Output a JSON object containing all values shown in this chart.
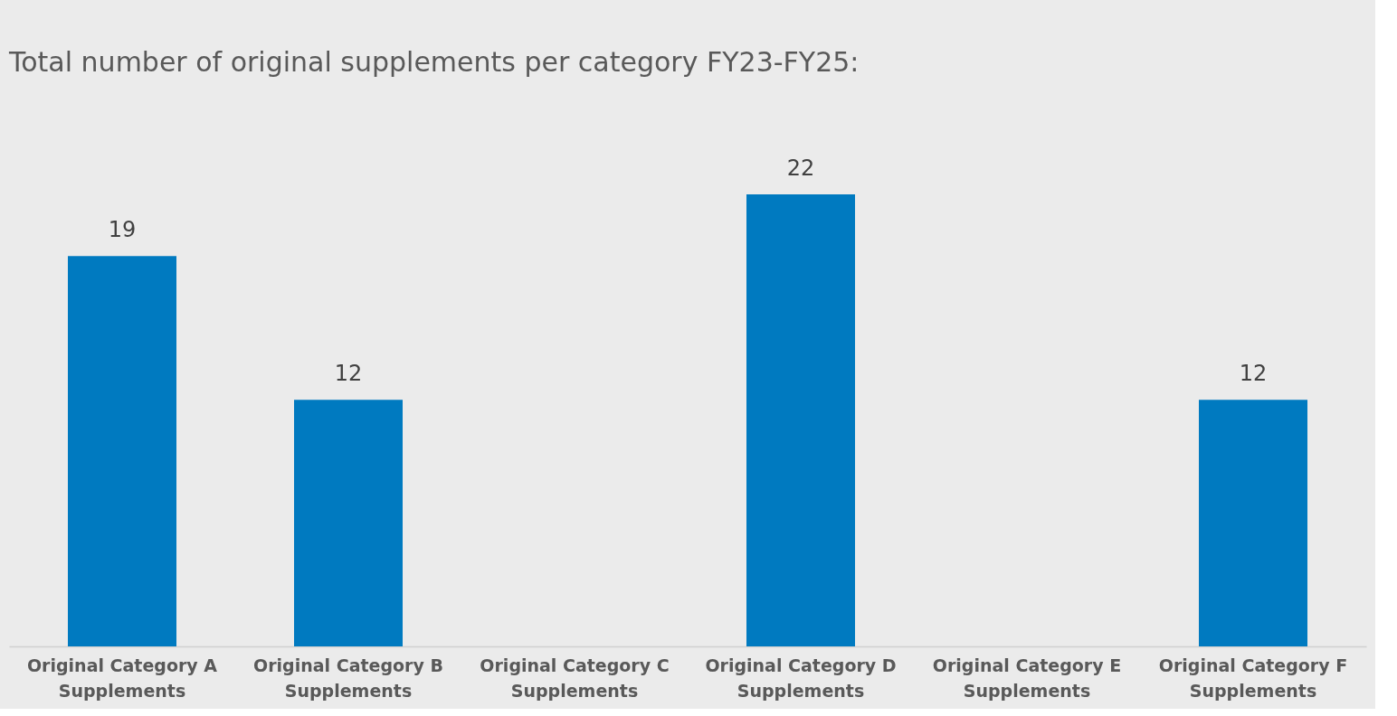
{
  "chart_data": {
    "type": "bar",
    "title": "Total number of original supplements per category FY23-FY25:",
    "categories": [
      "Original Category A Supplements",
      "Original Category B Supplements",
      "Original Category C Supplements",
      "Original Category D Supplements",
      "Original Category E Supplements",
      "Original Category F Supplements"
    ],
    "values": [
      19,
      12,
      null,
      22,
      null,
      12
    ],
    "color": "#007ac0",
    "data_labels": true
  }
}
